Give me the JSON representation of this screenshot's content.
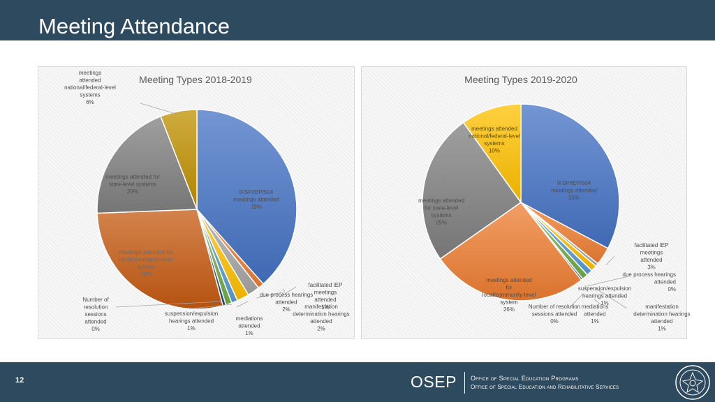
{
  "slide": {
    "title": "Meeting Attendance",
    "page_number": "12"
  },
  "footer": {
    "brand": "OSEP",
    "office_line1": "Office of Special Education Programs",
    "office_line2": "Office of Special Education and Rehabilitative Services"
  },
  "chart_data": [
    {
      "type": "pie",
      "title": "Meeting Types 2018-2019",
      "slices": [
        {
          "label": "IFSP/IEP/504 meetings attended",
          "percent_label": "39%",
          "value": 39,
          "color": "#4472c4"
        },
        {
          "label": "facilitated IEP meetings attended",
          "percent_label": "1%",
          "value": 1,
          "color": "#ed7d31"
        },
        {
          "label": "due process hearings attended",
          "percent_label": "2%",
          "value": 2,
          "color": "#a5a5a5"
        },
        {
          "label": "manifestation determination hearings attended",
          "percent_label": "2%",
          "value": 2,
          "color": "#ffc000"
        },
        {
          "label": "mediations attended",
          "percent_label": "1%",
          "value": 1,
          "color": "#5b9bd5"
        },
        {
          "label": "suspension/expulsion hearings attended",
          "percent_label": "1%",
          "value": 1,
          "color": "#70ad47"
        },
        {
          "label": "Number of resolution sessions attended",
          "percent_label": "0%",
          "value": 0.5,
          "color": "#264478"
        },
        {
          "label": "meetings attended for local/community-level system",
          "percent_label": "29%",
          "value": 29,
          "color": "#c55a11"
        },
        {
          "label": "meetings attended for state-level systems",
          "percent_label": "20%",
          "value": 20,
          "color": "#7f7f7f"
        },
        {
          "label": "meetings attended national/federal-level systems",
          "percent_label": "6%",
          "value": 6,
          "color": "#bf9000"
        }
      ]
    },
    {
      "type": "pie",
      "title": "Meeting Types 2019-2020",
      "slices": [
        {
          "label": "IFSP/IEP/504 meetings attended",
          "percent_label": "33%",
          "value": 33,
          "color": "#4472c4"
        },
        {
          "label": "facilitated IEP meetings attended",
          "percent_label": "3%",
          "value": 3,
          "color": "#ed7d31"
        },
        {
          "label": "due process hearings attended",
          "percent_label": "0%",
          "value": 0.5,
          "color": "#a5a5a5"
        },
        {
          "label": "manifestation determination hearings attended",
          "percent_label": "1%",
          "value": 1,
          "color": "#ffc000"
        },
        {
          "label": "mediations attended",
          "percent_label": "1%",
          "value": 1,
          "color": "#5b9bd5"
        },
        {
          "label": "suspension/expulsion hearings attended",
          "percent_label": "1%",
          "value": 1,
          "color": "#70ad47"
        },
        {
          "label": "Number of resolution sessions attended",
          "percent_label": "0%",
          "value": 0.3,
          "color": "#264478"
        },
        {
          "label": "meetings attended for local/community-level system",
          "percent_label": "26%",
          "value": 26,
          "color": "#ed7d31"
        },
        {
          "label": "meetings attended for state-level systems",
          "percent_label": "25%",
          "value": 25,
          "color": "#7f7f7f"
        },
        {
          "label": "meetings attended national/federal-level systems",
          "percent_label": "10%",
          "value": 10,
          "color": "#ffc000"
        }
      ]
    }
  ]
}
